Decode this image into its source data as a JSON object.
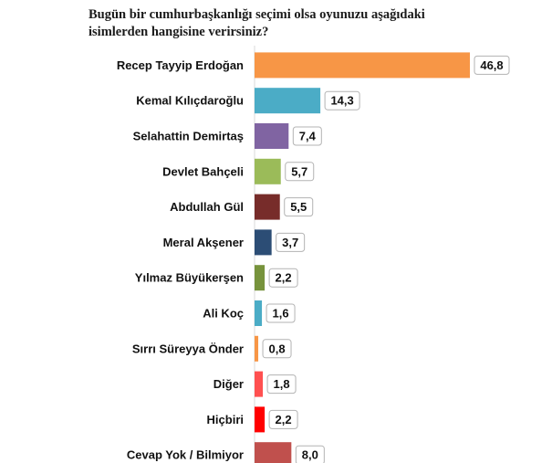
{
  "chart_data": {
    "type": "bar",
    "orientation": "horizontal",
    "title": "Bugün bir cumhurbaşkanlığı seçimi olsa oyunuzu aşağıdaki isimlerden hangisine verirsiniz?",
    "title_lines": [
      "Bugün bir cumhurbaşkanlığı seçimi olsa oyunuzu aşağıdaki",
      "isimlerden hangisine verirsiniz?"
    ],
    "categories": [
      "Recep Tayyip Erdoğan",
      "Kemal Kılıçdaroğlu",
      "Selahattin Demirtaş",
      "Devlet Bahçeli",
      "Abdullah Gül",
      "Meral Akşener",
      "Yılmaz Büyükerşen",
      "Ali Koç",
      "Sırrı Süreyya Önder",
      "Diğer",
      "Hiçbiri",
      "Cevap Yok / Bilmiyor"
    ],
    "values": [
      46.8,
      14.3,
      7.4,
      5.7,
      5.5,
      3.7,
      2.2,
      1.6,
      0.8,
      1.8,
      2.2,
      8.0
    ],
    "value_labels": [
      "46,8",
      "14,3",
      "7,4",
      "5,7",
      "5,5",
      "3,7",
      "2,2",
      "1,6",
      "0,8",
      "1,8",
      "2,2",
      "8,0"
    ],
    "colors": [
      "#f79646",
      "#4bacc6",
      "#8064a2",
      "#9bbb59",
      "#772c2a",
      "#2c4d75",
      "#77933c",
      "#4bacc6",
      "#f79646",
      "#ff5050",
      "#ff0000",
      "#c0504d"
    ],
    "xlim": [
      0,
      50
    ],
    "grid": false,
    "legend": "none",
    "xlabel": "",
    "ylabel": ""
  }
}
